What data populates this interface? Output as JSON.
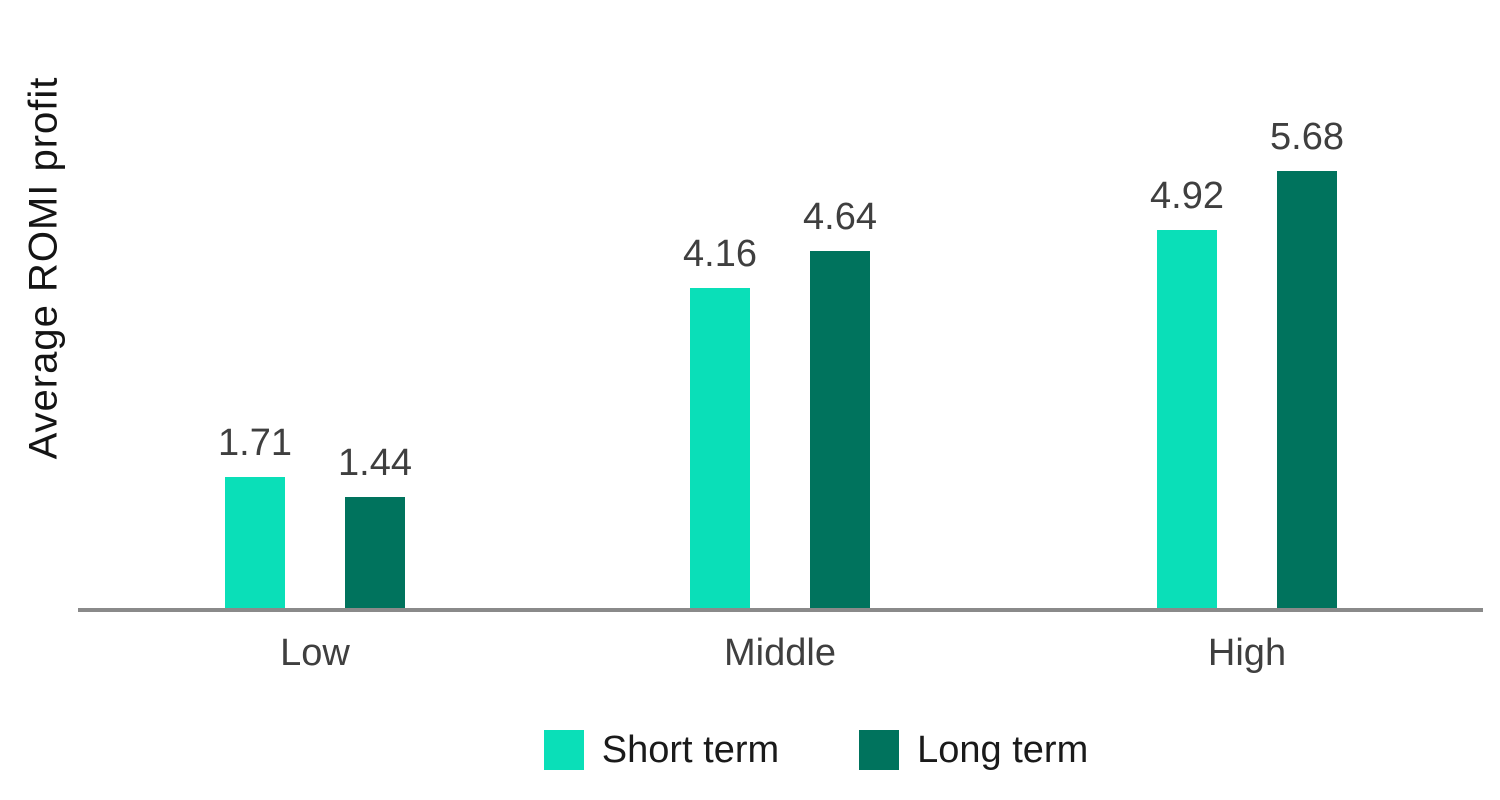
{
  "chart_data": {
    "type": "bar",
    "categories": [
      "Low",
      "Middle",
      "High"
    ],
    "series": [
      {
        "name": "Short term",
        "color": "#0ADFB8",
        "values": [
          1.71,
          4.16,
          4.92
        ],
        "labels": [
          "1.71",
          "4.16",
          "4.92"
        ]
      },
      {
        "name": "Long term",
        "color": "#00735D",
        "values": [
          1.44,
          4.64,
          5.68
        ],
        "labels": [
          "1.44",
          "4.64",
          "5.68"
        ]
      }
    ],
    "title": "",
    "xlabel": "",
    "ylabel": "Average ROMI profit",
    "ylim": [
      0,
      6
    ],
    "grid": false,
    "legend_position": "bottom",
    "value_labels_shown": true
  },
  "legend": {
    "items": [
      {
        "label": "Short term",
        "color": "#0ADFB8"
      },
      {
        "label": "Long term",
        "color": "#00735D"
      }
    ]
  },
  "colors": {
    "background": "#FFFFFF",
    "axis_line": "#8A8A8A",
    "value_label_text": "#3F3F3F",
    "category_label_text": "#3F3F3F",
    "legend_text": "#1A1A1A",
    "y_axis_label_text": "#141414"
  }
}
